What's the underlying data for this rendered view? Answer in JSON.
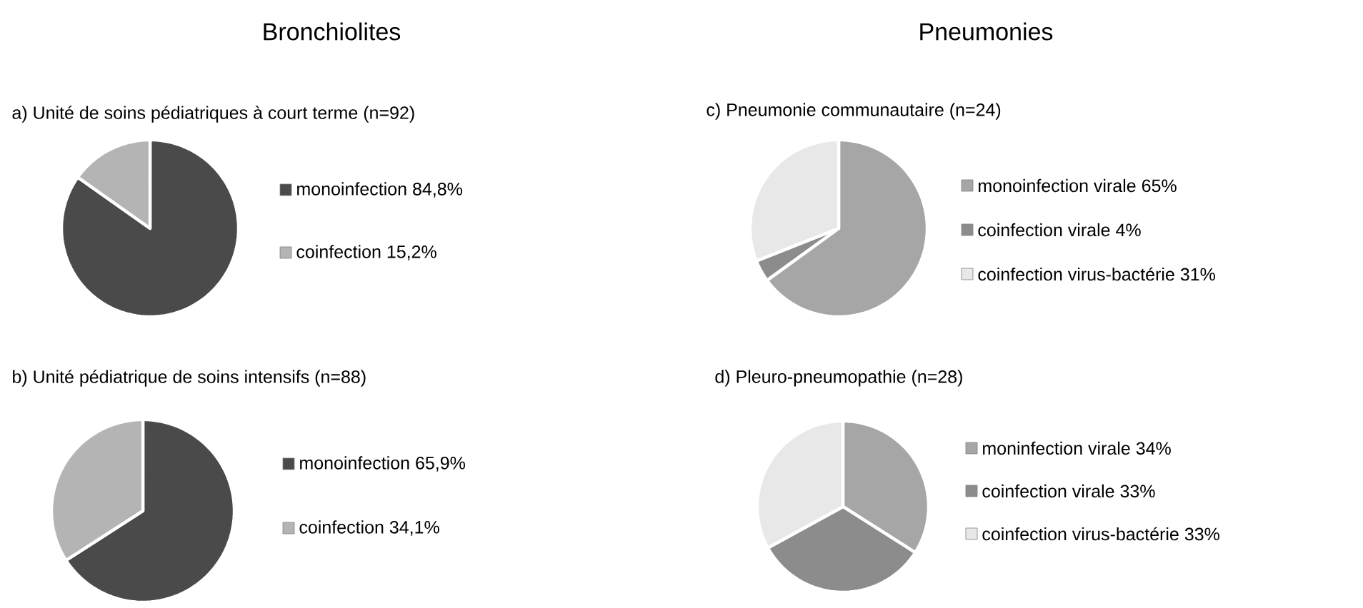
{
  "chart_data": [
    {
      "type": "pie",
      "title": "Bronchiolites",
      "subtitle": "a) Unité de soins pédiatriques à court terme (n=92)",
      "categories": [
        "monoinfection",
        "coinfection"
      ],
      "values": [
        84.8,
        15.2
      ],
      "value_labels": [
        "84,8%",
        "15,2%"
      ],
      "colors": [
        "#4a4a4a",
        "#b4b4b4"
      ],
      "legend": "right"
    },
    {
      "type": "pie",
      "subtitle": "b) Unité pédiatrique de soins intensifs (n=88)",
      "categories": [
        "monoinfection",
        "coinfection"
      ],
      "values": [
        65.9,
        34.1
      ],
      "value_labels": [
        "65,9%",
        "34,1%"
      ],
      "colors": [
        "#4a4a4a",
        "#b4b4b4"
      ],
      "legend": "right"
    },
    {
      "type": "pie",
      "title": "Pneumonies",
      "subtitle": "c) Pneumonie communautaire (n=24)",
      "categories": [
        "monoinfection virale",
        "coinfection virale",
        "coinfection virus-bactérie"
      ],
      "values": [
        65,
        4,
        31
      ],
      "value_labels": [
        "65%",
        "4%",
        "31%"
      ],
      "colors": [
        "#a6a6a6",
        "#8c8c8c",
        "#e8e8e8"
      ],
      "legend": "right"
    },
    {
      "type": "pie",
      "subtitle": "d) Pleuro-pneumopathie (n=28)",
      "categories": [
        "moninfection virale",
        "coinfection virale",
        "coinfection virus-bactérie"
      ],
      "values": [
        34,
        33,
        33
      ],
      "value_labels": [
        "34%",
        "33%",
        "33%"
      ],
      "colors": [
        "#a6a6a6",
        "#8c8c8c",
        "#e8e8e8"
      ],
      "legend": "right"
    }
  ]
}
